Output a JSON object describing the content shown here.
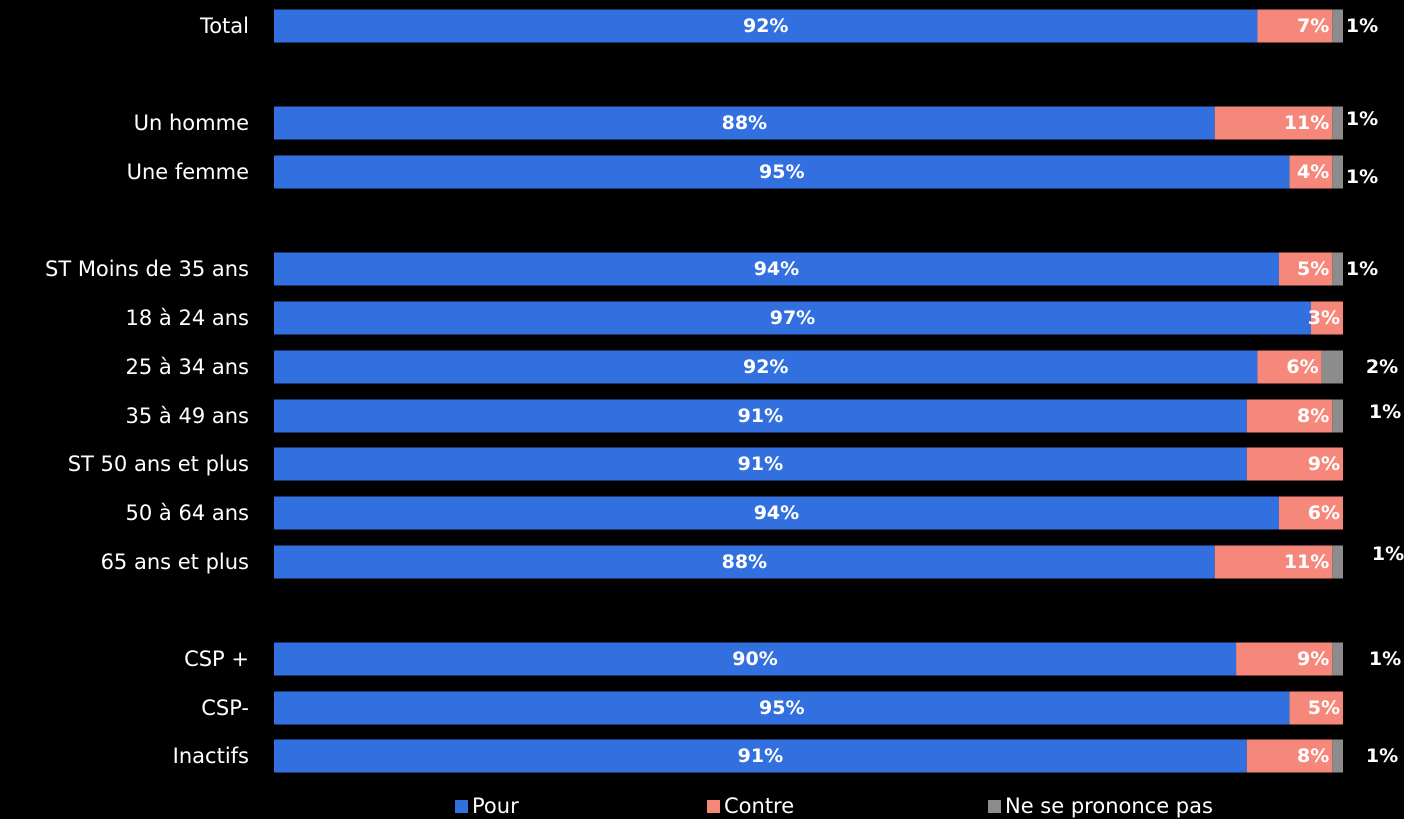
{
  "chart_data": {
    "type": "bar",
    "orientation": "horizontal",
    "stacked": true,
    "title": "",
    "xlabel": "",
    "ylabel": "",
    "xlim": [
      0,
      100
    ],
    "grid": false,
    "legend_position": "bottom",
    "categories": [
      "Total",
      "Un homme",
      "Une femme",
      "ST Moins de 35 ans",
      "18 à 24 ans",
      "25 à 34 ans",
      "35 à 49 ans",
      "ST 50 ans et plus",
      "50 à 64 ans",
      "65 ans et plus",
      "CSP +",
      "CSP-",
      "Inactifs"
    ],
    "series": [
      {
        "name": "Pour",
        "color": "#3370DF",
        "values": [
          92,
          88,
          95,
          94,
          97,
          92,
          91,
          91,
          94,
          88,
          90,
          95,
          91
        ],
        "labels": [
          "92%",
          "88%",
          "95%",
          "94%",
          "97%",
          "92%",
          "91%",
          "91%",
          "94%",
          "88%",
          "90%",
          "95%",
          "91%"
        ]
      },
      {
        "name": "Contre",
        "color": "#F5887A",
        "values": [
          7,
          11,
          4,
          5,
          3,
          6,
          8,
          9,
          6,
          11,
          9,
          5,
          8
        ],
        "labels": [
          "7%",
          "11%",
          "4%",
          "5%",
          "3%",
          "6%",
          "8%",
          "9%",
          "6%",
          "11%",
          "9%",
          "5%",
          "8%"
        ]
      },
      {
        "name": "Ne se prononce pas",
        "color": "#8C8C8C",
        "values": [
          1,
          1,
          1,
          1,
          0,
          2,
          1,
          0,
          0,
          1,
          1,
          0,
          1
        ],
        "labels": [
          "1%",
          "1%",
          "1%",
          "1%",
          "",
          "2%",
          "1%",
          "",
          "",
          "1%",
          "1%",
          "",
          "1%"
        ]
      }
    ]
  }
}
